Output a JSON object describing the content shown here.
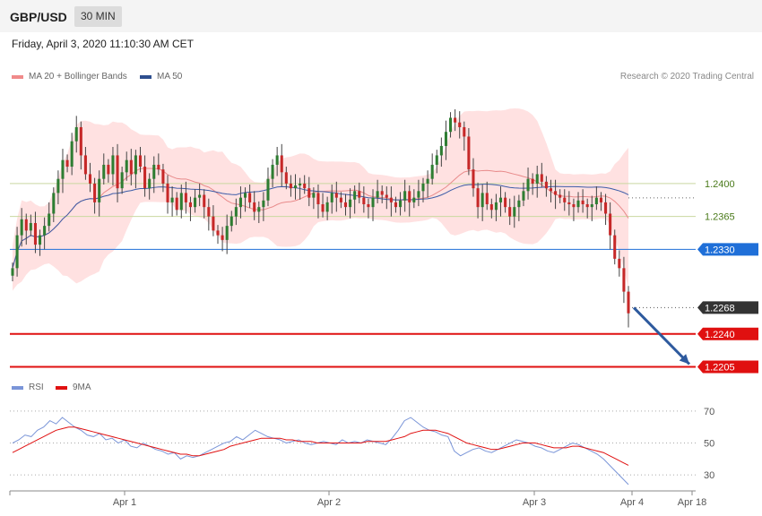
{
  "header": {
    "symbol": "GBP/USD",
    "timeframe": "30 MIN",
    "datetime": "Friday, April 3, 2020 11:10:30 AM CET"
  },
  "legend": {
    "ma20_bb": "MA 20 + Bollinger Bands",
    "ma50": "MA 50",
    "credit": "Research © 2020 Trading Central",
    "rsi": "RSI",
    "rsi_ma": "9MA"
  },
  "colors": {
    "bull": "#2e7d32",
    "bear": "#c62828",
    "band_fill": "#ffdede",
    "ma20": "#e88b8b",
    "ma50": "#3b5ca8",
    "level_green": "#c9d8a0",
    "level_blue": "#1f6fd8",
    "level_red": "#e01010",
    "current_price": "#333333",
    "arrow": "#2e5a9e",
    "rsi_line": "#7a95d8",
    "rsi_ma_line": "#e01010"
  },
  "chart_data": [
    {
      "type": "candlestick",
      "title": "GBP/USD",
      "x_ticks": [
        "Apr 1",
        "Apr 2",
        "Apr 3",
        "Apr 4",
        "Apr 18"
      ],
      "ylim": [
        1.2195,
        1.25
      ],
      "levels": [
        {
          "value": 1.24,
          "label": "1.2400",
          "style": "green"
        },
        {
          "value": 1.2365,
          "label": "1.2365",
          "style": "green"
        },
        {
          "value": 1.233,
          "label": "1.2330",
          "style": "blue"
        },
        {
          "value": 1.2268,
          "label": "1.2268",
          "style": "current"
        },
        {
          "value": 1.224,
          "label": "1.2240",
          "style": "red"
        },
        {
          "value": 1.2205,
          "label": "1.2205",
          "style": "red"
        }
      ],
      "forecast_arrow": {
        "from": 1.2268,
        "to": 1.2205
      },
      "closes": [
        1.231,
        1.2345,
        1.2362,
        1.235,
        1.2358,
        1.2335,
        1.2345,
        1.2355,
        1.2368,
        1.239,
        1.2405,
        1.2425,
        1.2418,
        1.2445,
        1.246,
        1.243,
        1.241,
        1.24,
        1.238,
        1.2405,
        1.242,
        1.241,
        1.243,
        1.2395,
        1.2412,
        1.2425,
        1.241,
        1.243,
        1.2418,
        1.2395,
        1.2405,
        1.242,
        1.2415,
        1.24,
        1.238,
        1.2385,
        1.2372,
        1.239,
        1.238,
        1.2375,
        1.2385,
        1.2388,
        1.2375,
        1.2365,
        1.235,
        1.2345,
        1.234,
        1.2355,
        1.2365,
        1.2375,
        1.2385,
        1.239,
        1.238,
        1.237,
        1.2375,
        1.2382,
        1.2405,
        1.242,
        1.243,
        1.2412,
        1.24,
        1.2395,
        1.2398,
        1.24,
        1.2395,
        1.2385,
        1.239,
        1.2378,
        1.237,
        1.238,
        1.239,
        1.2385,
        1.238,
        1.2375,
        1.2383,
        1.2392,
        1.2385,
        1.2378,
        1.2375,
        1.2385,
        1.2392,
        1.2388,
        1.2385,
        1.238,
        1.2375,
        1.2382,
        1.2392,
        1.238,
        1.2385,
        1.2392,
        1.24,
        1.2405,
        1.242,
        1.243,
        1.244,
        1.2455,
        1.247,
        1.2465,
        1.246,
        1.245,
        1.2415,
        1.2395,
        1.2375,
        1.239,
        1.2378,
        1.2372,
        1.238,
        1.2385,
        1.2375,
        1.2365,
        1.2375,
        1.2382,
        1.2392,
        1.2405,
        1.24,
        1.241,
        1.2402,
        1.2395,
        1.2392,
        1.2388,
        1.2385,
        1.238,
        1.2378,
        1.2375,
        1.2382,
        1.2378,
        1.2375,
        1.2378,
        1.2385,
        1.238,
        1.2368,
        1.2345,
        1.232,
        1.231,
        1.2285,
        1.2262
      ],
      "ma50_note": "blue line",
      "bands_note": "MA 20 ± Bollinger"
    },
    {
      "type": "line",
      "title": "RSI",
      "ylim": [
        20,
        75
      ],
      "y_ticks": [
        70,
        50,
        30
      ],
      "series": [
        {
          "name": "RSI",
          "values": [
            50,
            52,
            55,
            54,
            58,
            60,
            64,
            62,
            66,
            63,
            60,
            58,
            55,
            54,
            56,
            52,
            53,
            50,
            52,
            48,
            47,
            50,
            48,
            46,
            45,
            43,
            44,
            40,
            42,
            41,
            42,
            44,
            46,
            48,
            50,
            51,
            54,
            52,
            55,
            58,
            56,
            54,
            53,
            52,
            50,
            51,
            52,
            50,
            49,
            50,
            51,
            50,
            49,
            52,
            50,
            51,
            50,
            52,
            51,
            50,
            49,
            53,
            58,
            64,
            66,
            63,
            60,
            58,
            57,
            55,
            54,
            45,
            42,
            44,
            46,
            47,
            45,
            44,
            46,
            48,
            50,
            52,
            51,
            50,
            48,
            47,
            45,
            44,
            46,
            48,
            50,
            49,
            47,
            45,
            43,
            40,
            36,
            32,
            28,
            24
          ]
        },
        {
          "name": "9MA",
          "values": [
            44,
            46,
            48,
            50,
            52,
            54,
            56,
            58,
            59,
            60,
            60,
            59,
            58,
            57,
            56,
            55,
            54,
            53,
            52,
            51,
            50,
            49,
            48,
            47,
            46,
            45,
            44,
            43,
            43,
            42,
            42,
            43,
            44,
            45,
            46,
            48,
            49,
            50,
            51,
            52,
            53,
            53,
            53,
            53,
            52,
            52,
            51,
            51,
            51,
            50,
            50,
            50,
            50,
            50,
            50,
            50,
            50,
            51,
            51,
            51,
            51,
            52,
            53,
            54,
            56,
            57,
            58,
            58,
            58,
            57,
            56,
            54,
            52,
            50,
            49,
            48,
            47,
            46,
            46,
            47,
            48,
            49,
            50,
            50,
            50,
            49,
            48,
            47,
            47,
            47,
            48,
            48,
            47,
            46,
            45,
            44,
            42,
            40,
            38,
            36
          ]
        }
      ]
    }
  ]
}
